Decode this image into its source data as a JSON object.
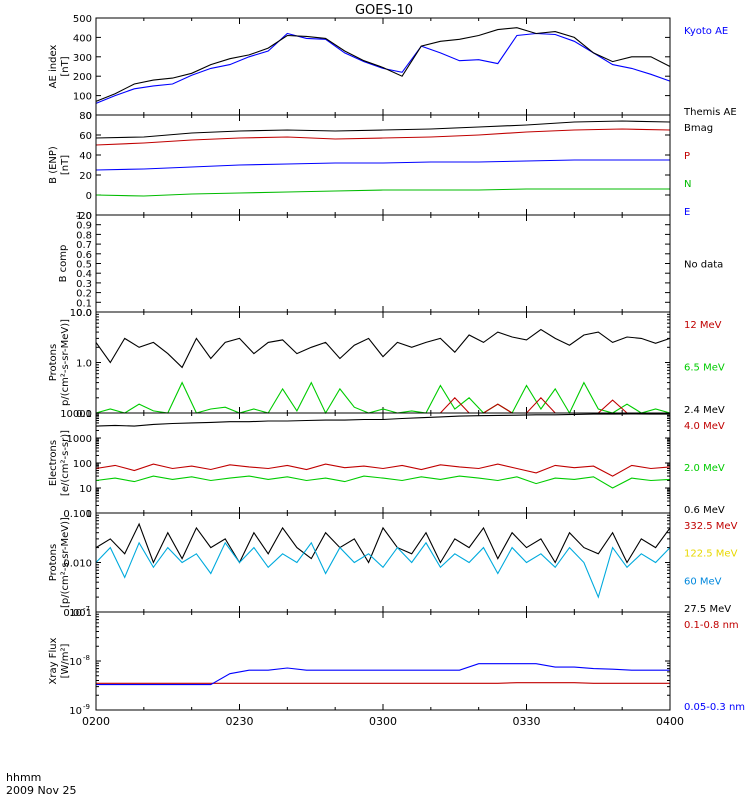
{
  "title": "GOES-10",
  "footer": {
    "time_label": "hhmm",
    "date_label": "2009 Nov 25"
  },
  "x_ticks": [
    "0200",
    "0230",
    "0300",
    "0330",
    "0400"
  ],
  "chart_data": [
    {
      "type": "line",
      "ylabel_lines": [
        "AE index",
        "[nT]"
      ],
      "ylim": [
        0,
        500
      ],
      "yticks": [
        0,
        100,
        200,
        300,
        400,
        500
      ],
      "ytick_labels": [
        "0",
        "100",
        "200",
        "300",
        "400",
        "500"
      ],
      "x_minutes": [
        0,
        4,
        8,
        12,
        16,
        20,
        24,
        28,
        32,
        36,
        40,
        44,
        48,
        52,
        56,
        60,
        64,
        68,
        72,
        76,
        80,
        84,
        88,
        92,
        96,
        100,
        104,
        108,
        112,
        116,
        120
      ],
      "series": [
        {
          "name": "Kyoto AE",
          "color": "#0000ff",
          "values": [
            60,
            100,
            135,
            150,
            160,
            205,
            240,
            260,
            300,
            330,
            420,
            395,
            390,
            320,
            275,
            240,
            220,
            355,
            320,
            280,
            285,
            265,
            410,
            420,
            415,
            380,
            320,
            260,
            240,
            210,
            175
          ]
        },
        {
          "name": "Themis AE",
          "color": "#000000",
          "values": [
            70,
            110,
            160,
            180,
            190,
            215,
            260,
            290,
            310,
            345,
            410,
            405,
            395,
            330,
            280,
            245,
            200,
            355,
            380,
            390,
            410,
            440,
            450,
            420,
            430,
            400,
            320,
            275,
            300,
            300,
            250
          ]
        }
      ],
      "legend": [
        "Kyoto AE",
        "Themis AE"
      ]
    },
    {
      "type": "line",
      "ylabel_lines": [
        "B (ENP)",
        "[nT]"
      ],
      "ylim": [
        -20,
        80
      ],
      "yticks": [
        -20,
        0,
        20,
        40,
        60,
        80
      ],
      "ytick_labels": [
        "-20",
        "0",
        "20",
        "40",
        "60",
        "80"
      ],
      "x_minutes": [
        0,
        10,
        20,
        30,
        40,
        50,
        60,
        70,
        80,
        90,
        100,
        110,
        120
      ],
      "series": [
        {
          "name": "Bmag",
          "color": "#000000",
          "values": [
            57,
            58,
            62,
            64,
            65,
            64,
            65,
            66,
            68,
            70,
            73,
            74,
            73
          ]
        },
        {
          "name": "P",
          "color": "#c00000",
          "values": [
            50,
            52,
            55,
            57,
            58,
            56,
            57,
            58,
            60,
            63,
            65,
            66,
            65
          ]
        },
        {
          "name": "N",
          "color": "#00bb00",
          "values": [
            0,
            -1,
            1,
            2,
            3,
            4,
            5,
            5,
            5,
            6,
            6,
            6,
            6
          ]
        },
        {
          "name": "E",
          "color": "#0000ff",
          "values": [
            25,
            26,
            28,
            30,
            31,
            32,
            32,
            33,
            33,
            34,
            35,
            35,
            35
          ]
        }
      ],
      "legend": [
        "Bmag",
        "P",
        "N",
        "E"
      ]
    },
    {
      "type": "line",
      "ylabel_lines": [
        "B comp"
      ],
      "ylim": [
        0,
        1
      ],
      "yticks": [
        0,
        0.1,
        0.2,
        0.3,
        0.4,
        0.5,
        0.6,
        0.7,
        0.8,
        0.9,
        1.0
      ],
      "ytick_labels": [
        "0.0",
        "0.1",
        "0.2",
        "0.3",
        "0.4",
        "0.5",
        "0.6",
        "0.7",
        "0.8",
        "0.9",
        "1.0"
      ],
      "series": [],
      "legend": [
        "No data"
      ]
    },
    {
      "type": "line",
      "log": true,
      "ylabel_lines": [
        "Protons",
        "p/(cm²-s-sr-MeV)]"
      ],
      "ylim": [
        0.1,
        10
      ],
      "yticks": [
        0.1,
        1,
        10
      ],
      "ytick_labels": [
        "0.1",
        "1.0",
        "10.0"
      ],
      "x_minutes": [
        0,
        3,
        6,
        9,
        12,
        15,
        18,
        21,
        24,
        27,
        30,
        33,
        36,
        39,
        42,
        45,
        48,
        51,
        54,
        57,
        60,
        63,
        66,
        69,
        72,
        75,
        78,
        81,
        84,
        87,
        90,
        93,
        96,
        99,
        102,
        105,
        108,
        111,
        114,
        117,
        120
      ],
      "series": [
        {
          "name": "2.4 MeV",
          "color": "#000000",
          "values": [
            2.5,
            1.0,
            3.0,
            2.0,
            2.5,
            1.5,
            0.8,
            3.0,
            1.2,
            2.5,
            3.0,
            1.5,
            2.5,
            2.8,
            1.5,
            2.0,
            2.5,
            1.2,
            2.2,
            3.0,
            1.3,
            2.5,
            2.0,
            2.5,
            3.0,
            1.6,
            3.5,
            2.5,
            4.0,
            3.2,
            2.8,
            4.5,
            3.0,
            2.2,
            3.5,
            4.0,
            2.5,
            3.2,
            3.0,
            2.4,
            3.0
          ]
        },
        {
          "name": "6.5 MeV",
          "color": "#00cc00",
          "values": [
            0.1,
            0.12,
            0.1,
            0.15,
            0.11,
            0.1,
            0.4,
            0.1,
            0.12,
            0.13,
            0.1,
            0.12,
            0.1,
            0.3,
            0.11,
            0.4,
            0.1,
            0.3,
            0.13,
            0.1,
            0.12,
            0.1,
            0.11,
            0.1,
            0.35,
            0.12,
            0.2,
            0.1,
            0.15,
            0.1,
            0.35,
            0.12,
            0.3,
            0.1,
            0.4,
            0.12,
            0.1,
            0.15,
            0.1,
            0.12,
            0.1
          ]
        },
        {
          "name": "12 MeV",
          "color": "#c00000",
          "values": [
            0.1,
            0.1,
            0.1,
            0.1,
            0.1,
            0.1,
            0.1,
            0.1,
            0.1,
            0.1,
            0.1,
            0.1,
            0.1,
            0.1,
            0.1,
            0.1,
            0.1,
            0.1,
            0.1,
            0.1,
            0.1,
            0.1,
            0.1,
            0.1,
            0.1,
            0.2,
            0.1,
            0.1,
            0.15,
            0.1,
            0.1,
            0.2,
            0.1,
            0.1,
            0.1,
            0.1,
            0.18,
            0.1,
            0.1,
            0.1,
            0.1
          ]
        }
      ],
      "legend": [
        "12 MeV",
        "6.5 MeV",
        "2.4 MeV"
      ]
    },
    {
      "type": "line",
      "log": true,
      "ylabel_lines": [
        "Electrons",
        "[e/(cm²-s-sr)]"
      ],
      "ylim": [
        1,
        10000
      ],
      "yticks": [
        1,
        10,
        100,
        1000,
        10000
      ],
      "ytick_labels": [
        "1",
        "10",
        "100",
        "1000",
        "10000"
      ],
      "x_minutes": [
        0,
        4,
        8,
        12,
        16,
        20,
        24,
        28,
        32,
        36,
        40,
        44,
        48,
        52,
        56,
        60,
        64,
        68,
        72,
        76,
        80,
        84,
        88,
        92,
        96,
        100,
        104,
        108,
        112,
        116,
        120
      ],
      "series": [
        {
          "name": "0.6 MeV",
          "color": "#000000",
          "values": [
            3000,
            3200,
            3000,
            3500,
            3800,
            4000,
            4200,
            4500,
            4500,
            4800,
            4800,
            5000,
            5200,
            5200,
            5500,
            5500,
            6000,
            6500,
            7000,
            7500,
            7800,
            8000,
            8200,
            8500,
            8500,
            8800,
            9000,
            9000,
            9200,
            9000,
            9000
          ]
        },
        {
          "name": "2.0 MeV",
          "color": "#00cc00",
          "values": [
            20,
            25,
            18,
            30,
            22,
            28,
            20,
            25,
            30,
            22,
            28,
            20,
            25,
            18,
            30,
            25,
            20,
            28,
            22,
            30,
            25,
            20,
            28,
            15,
            25,
            22,
            28,
            10,
            25,
            20,
            22
          ]
        },
        {
          "name": "4.0 MeV",
          "color": "#c00000",
          "values": [
            60,
            80,
            50,
            90,
            60,
            75,
            55,
            85,
            70,
            60,
            80,
            55,
            90,
            65,
            75,
            60,
            80,
            55,
            85,
            70,
            60,
            90,
            60,
            40,
            80,
            65,
            75,
            30,
            80,
            60,
            70
          ]
        }
      ],
      "legend": [
        "4.0 MeV",
        "2.0 MeV",
        "0.6 MeV"
      ]
    },
    {
      "type": "line",
      "log": true,
      "ylabel_lines": [
        "Protons",
        "[p/(cm²-s-sr-MeV)]"
      ],
      "ylim": [
        0.001,
        0.1
      ],
      "yticks": [
        0.001,
        0.01,
        0.1
      ],
      "ytick_labels": [
        "0.001",
        "0.010",
        "0.100"
      ],
      "x_minutes": [
        0,
        3,
        6,
        9,
        12,
        15,
        18,
        21,
        24,
        27,
        30,
        33,
        36,
        39,
        42,
        45,
        48,
        51,
        54,
        57,
        60,
        63,
        66,
        69,
        72,
        75,
        78,
        81,
        84,
        87,
        90,
        93,
        96,
        99,
        102,
        105,
        108,
        111,
        114,
        117,
        120
      ],
      "series": [
        {
          "name": "27.5 MeV",
          "color": "#000000",
          "values": [
            0.02,
            0.03,
            0.015,
            0.06,
            0.01,
            0.04,
            0.012,
            0.05,
            0.02,
            0.03,
            0.01,
            0.04,
            0.015,
            0.05,
            0.02,
            0.012,
            0.04,
            0.02,
            0.03,
            0.01,
            0.05,
            0.02,
            0.015,
            0.04,
            0.01,
            0.03,
            0.02,
            0.05,
            0.012,
            0.04,
            0.02,
            0.03,
            0.01,
            0.04,
            0.02,
            0.015,
            0.04,
            0.01,
            0.03,
            0.02,
            0.05
          ]
        },
        {
          "name": "60 MeV",
          "color": "#00aadd",
          "values": [
            0.01,
            0.02,
            0.005,
            0.025,
            0.008,
            0.02,
            0.01,
            0.015,
            0.006,
            0.025,
            0.01,
            0.02,
            0.008,
            0.015,
            0.01,
            0.025,
            0.006,
            0.02,
            0.01,
            0.015,
            0.008,
            0.02,
            0.01,
            0.025,
            0.008,
            0.015,
            0.01,
            0.02,
            0.006,
            0.02,
            0.01,
            0.015,
            0.008,
            0.02,
            0.01,
            0.002,
            0.02,
            0.008,
            0.015,
            0.01,
            0.02
          ]
        }
      ],
      "legend": [
        "332.5 MeV",
        "122.5 MeV",
        "60 MeV",
        "27.5 MeV"
      ],
      "legend_colors": [
        "#c00000",
        "#e8d800",
        "#0088dd",
        "#000000"
      ]
    },
    {
      "type": "line",
      "log": true,
      "ylabel_lines": [
        "Xray  Flux",
        "[W/m²]"
      ],
      "ylim": [
        1e-09,
        1e-07
      ],
      "yticks": [
        1e-09,
        1e-08,
        1e-07
      ],
      "ytick_labels": [
        "10",
        "10",
        "10"
      ],
      "ytick_exponents": [
        "-9",
        "-8",
        "-7"
      ],
      "x_minutes": [
        0,
        10,
        20,
        24,
        28,
        32,
        36,
        40,
        44,
        48,
        52,
        56,
        60,
        64,
        68,
        72,
        76,
        80,
        84,
        88,
        92,
        96,
        100,
        104,
        108,
        112,
        116,
        120
      ],
      "series": [
        {
          "name": "0.1-0.8 nm",
          "color": "#c00000",
          "values": [
            3.5e-09,
            3.5e-09,
            3.5e-09,
            3.5e-09,
            3.5e-09,
            3.5e-09,
            3.5e-09,
            3.5e-09,
            3.5e-09,
            3.5e-09,
            3.5e-09,
            3.5e-09,
            3.5e-09,
            3.5e-09,
            3.5e-09,
            3.5e-09,
            3.5e-09,
            3.5e-09,
            3.5e-09,
            3.6e-09,
            3.6e-09,
            3.6e-09,
            3.6e-09,
            3.5e-09,
            3.5e-09,
            3.5e-09,
            3.5e-09,
            3.5e-09
          ]
        },
        {
          "name": "0.05-0.3 nm",
          "color": "#0000ff",
          "values": [
            3.3e-09,
            3.3e-09,
            3.3e-09,
            3.3e-09,
            5.5e-09,
            6.5e-09,
            6.5e-09,
            7.2e-09,
            6.5e-09,
            6.5e-09,
            6.5e-09,
            6.5e-09,
            6.5e-09,
            6.5e-09,
            6.5e-09,
            6.5e-09,
            6.5e-09,
            8.8e-09,
            8.8e-09,
            8.8e-09,
            8.8e-09,
            7.5e-09,
            7.5e-09,
            7e-09,
            6.8e-09,
            6.5e-09,
            6.5e-09,
            6.5e-09
          ]
        }
      ],
      "legend": [
        "0.1-0.8 nm",
        "0.05-0.3 nm"
      ]
    }
  ]
}
